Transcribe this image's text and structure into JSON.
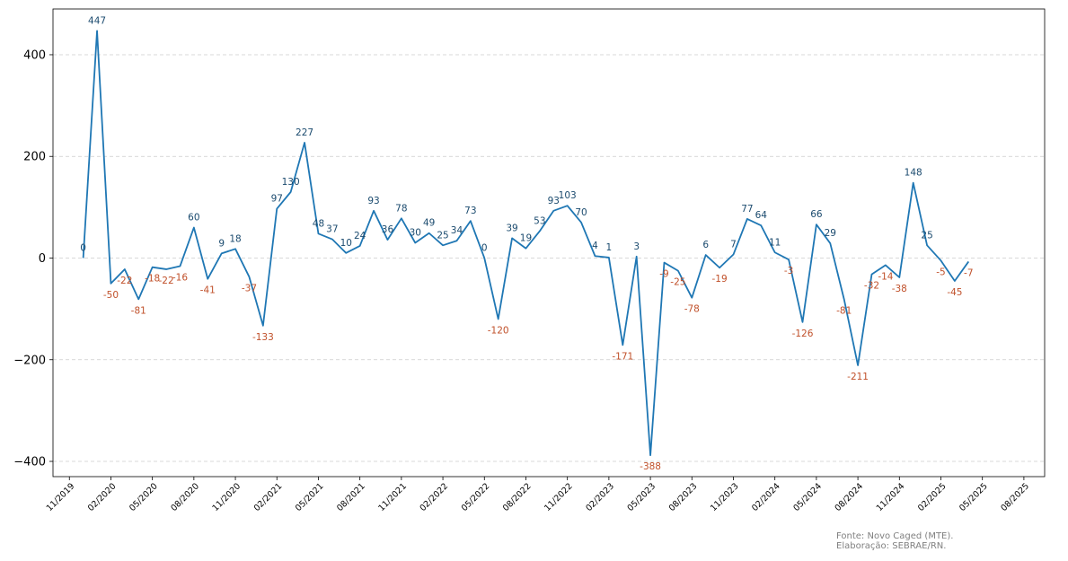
{
  "chart_data": {
    "type": "line",
    "title": "",
    "xlabel": "",
    "ylabel": "",
    "ylim": [
      -430,
      490
    ],
    "yticks": [
      -400,
      -200,
      0,
      200,
      400
    ],
    "ytick_labels": [
      "−400",
      "−200",
      "0",
      "200",
      "400"
    ],
    "grid": "horizontal-dashed",
    "line_color": "#1f77b4",
    "positive_label_color": "#1a4a6e",
    "negative_label_color": "#c0502a",
    "x_start": "2019-12",
    "xticks": [
      "11/2019",
      "02/2020",
      "05/2020",
      "08/2020",
      "11/2020",
      "02/2021",
      "05/2021",
      "08/2021",
      "11/2021",
      "02/2022",
      "05/2022",
      "08/2022",
      "11/2022",
      "02/2023",
      "05/2023",
      "08/2023",
      "11/2023",
      "02/2024",
      "05/2024",
      "08/2024",
      "11/2024",
      "02/2025",
      "05/2025",
      "08/2025"
    ],
    "values": [
      0,
      447,
      -50,
      -22,
      -81,
      -18,
      -22,
      -16,
      60,
      -41,
      9,
      18,
      -37,
      -133,
      97,
      130,
      227,
      48,
      37,
      10,
      24,
      93,
      36,
      78,
      30,
      49,
      25,
      34,
      73,
      0,
      -120,
      39,
      19,
      53,
      93,
      103,
      70,
      4,
      1,
      -171,
      3,
      -388,
      -9,
      -25,
      -78,
      6,
      -19,
      7,
      77,
      64,
      11,
      -3,
      -126,
      66,
      29,
      -81,
      -211,
      -32,
      -14,
      -38,
      148,
      25,
      -5,
      -45,
      -7
    ],
    "labels": [
      "0",
      "447",
      "-50",
      "-22",
      "-81",
      "-18",
      "-22",
      "-16",
      "60",
      "-41",
      "9",
      "18",
      "-37",
      "-133",
      "97",
      "130",
      "227",
      "48",
      "37",
      "10",
      "24",
      "93",
      "36",
      "78",
      "30",
      "49",
      "25",
      "34",
      "73",
      "0",
      "-120",
      "39",
      "19",
      "53",
      "93",
      "103",
      "70",
      "4",
      "1",
      "-171",
      "3",
      "-388",
      "-9",
      "-25",
      "-78",
      "6",
      "-19",
      "7",
      "77",
      "64",
      "11",
      "-3",
      "-126",
      "66",
      "29",
      "-81",
      "-211",
      "-32",
      "-14",
      "-38",
      "148",
      "25",
      "-5",
      "-45",
      "-7"
    ]
  },
  "source_line1": "Fonte: Novo Caged (MTE).",
  "source_line2": "Elaboração: SEBRAE/RN."
}
